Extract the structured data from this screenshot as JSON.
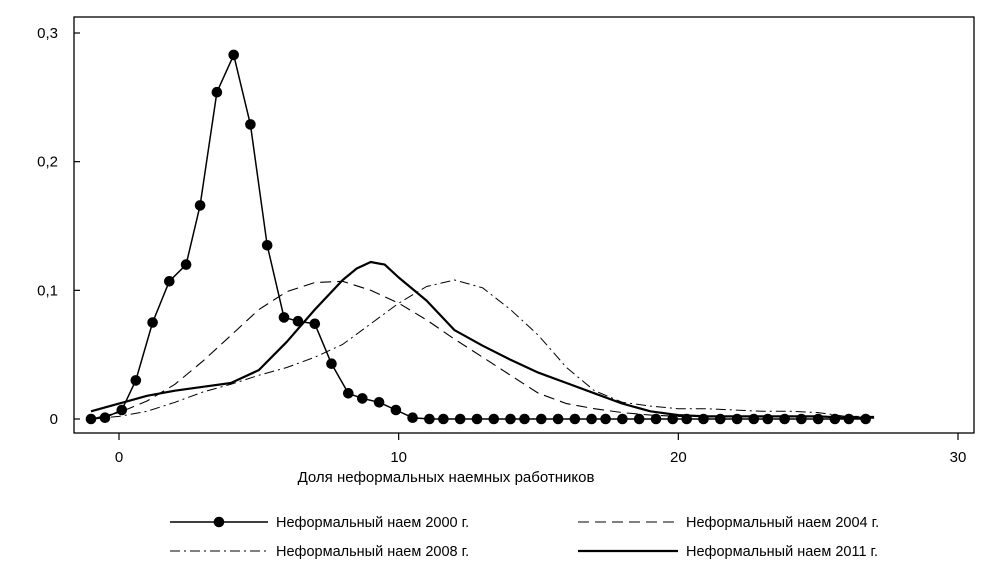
{
  "chart_data": {
    "type": "line",
    "title": "",
    "xlabel": "Доля неформальных наемных работников",
    "ylabel": "",
    "xlim": [
      -1.5,
      30
    ],
    "ylim": [
      -0.005,
      0.3
    ],
    "x_ticks": [
      0,
      10,
      20,
      30
    ],
    "x_tick_labels": [
      "0",
      "10",
      "20",
      "30"
    ],
    "y_ticks": [
      0,
      0.1,
      0.2,
      0.3
    ],
    "y_tick_labels": [
      "0",
      "0,1",
      "0,2",
      "0,3"
    ],
    "grid": false,
    "legend_position": "bottom",
    "series": [
      {
        "name": "Неформальный наем 2000 г.",
        "style": "solid-markers",
        "x": [
          -1.0,
          -0.5,
          0.1,
          0.6,
          1.2,
          1.8,
          2.4,
          2.9,
          3.5,
          4.1,
          4.7,
          5.3,
          5.9,
          6.4,
          7.0,
          7.6,
          8.2,
          8.7,
          9.3,
          9.9,
          10.5,
          11.1,
          11.6,
          12.2,
          12.8,
          13.4,
          14.0,
          14.5,
          15.1,
          15.7,
          16.3,
          16.9,
          17.4,
          18.0,
          18.6,
          19.2,
          19.8,
          20.3,
          20.9,
          21.5,
          22.1,
          22.7,
          23.2,
          23.8,
          24.4,
          25.0,
          25.6,
          26.1,
          26.7
        ],
        "y": [
          0.0,
          0.001,
          0.007,
          0.03,
          0.075,
          0.107,
          0.12,
          0.166,
          0.254,
          0.283,
          0.229,
          0.135,
          0.079,
          0.076,
          0.074,
          0.043,
          0.02,
          0.016,
          0.013,
          0.007,
          0.001,
          0.0,
          0.0,
          0.0,
          0.0,
          0.0,
          0.0,
          0.0,
          0.0,
          0.0,
          0.0,
          0.0,
          0.0,
          0.0,
          0.0,
          0.0,
          0.0,
          0.0,
          0.0,
          0.0,
          0.0,
          0.0,
          0.0,
          0.0,
          0.0,
          0.0,
          0.0,
          0.0,
          0.0
        ]
      },
      {
        "name": "Неформальный наем 2004 г.",
        "style": "dashed",
        "x": [
          -1.0,
          0.0,
          1.0,
          2.0,
          3.0,
          4.0,
          5.0,
          6.0,
          7.0,
          8.0,
          9.0,
          10.0,
          11.0,
          12.0,
          13.0,
          14.0,
          15.0,
          16.0,
          17.0,
          18.0,
          19.0,
          20.0,
          21.0,
          22.0,
          23.0,
          24.0,
          25.0,
          26.0,
          27.0
        ],
        "y": [
          0.0,
          0.005,
          0.014,
          0.027,
          0.045,
          0.065,
          0.085,
          0.099,
          0.106,
          0.107,
          0.1,
          0.09,
          0.077,
          0.062,
          0.048,
          0.034,
          0.02,
          0.012,
          0.008,
          0.005,
          0.003,
          0.002,
          0.002,
          0.002,
          0.002,
          0.002,
          0.002,
          0.002,
          0.002
        ]
      },
      {
        "name": "Неформальный наем 2008 г.",
        "style": "dash-dot",
        "x": [
          -1.0,
          0.0,
          1.0,
          2.0,
          3.0,
          4.0,
          5.0,
          6.0,
          7.0,
          8.0,
          9.0,
          10.0,
          11.0,
          12.0,
          13.0,
          14.0,
          15.0,
          16.0,
          17.0,
          18.0,
          19.0,
          20.0,
          21.0,
          22.0,
          23.0,
          24.0,
          25.0,
          26.0,
          27.0
        ],
        "y": [
          0.0,
          0.002,
          0.006,
          0.013,
          0.021,
          0.027,
          0.034,
          0.04,
          0.048,
          0.058,
          0.074,
          0.09,
          0.103,
          0.108,
          0.102,
          0.085,
          0.065,
          0.04,
          0.022,
          0.013,
          0.01,
          0.008,
          0.008,
          0.007,
          0.006,
          0.006,
          0.005,
          0.002,
          0.001
        ]
      },
      {
        "name": "Неформальный наем 2011 г.",
        "style": "solid-bold",
        "x": [
          -1.0,
          0.0,
          1.0,
          2.0,
          3.0,
          4.0,
          5.0,
          6.0,
          7.0,
          8.0,
          8.5,
          9.0,
          9.5,
          10.0,
          11.0,
          12.0,
          13.0,
          14.0,
          15.0,
          16.0,
          17.0,
          18.0,
          19.0,
          20.0,
          21.0,
          22.0,
          23.0,
          24.0,
          25.0,
          26.0,
          27.0
        ],
        "y": [
          0.006,
          0.012,
          0.018,
          0.022,
          0.025,
          0.028,
          0.038,
          0.06,
          0.085,
          0.108,
          0.117,
          0.122,
          0.12,
          0.11,
          0.092,
          0.069,
          0.057,
          0.046,
          0.036,
          0.028,
          0.02,
          0.012,
          0.006,
          0.003,
          0.002,
          0.002,
          0.002,
          0.002,
          0.002,
          0.001,
          0.001
        ]
      }
    ]
  }
}
